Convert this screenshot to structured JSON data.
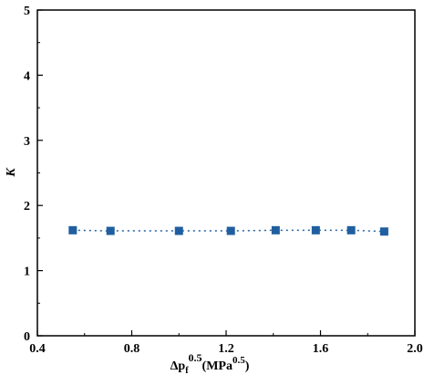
{
  "chart_data": {
    "type": "scatter",
    "xlabel": "Δp_f^0.5(MPa^0.5)",
    "xlabel_parts": {
      "base": "Δp",
      "sub": "f",
      "sup": "0.5",
      "unit_open": "(MPa",
      "unit_sup": "0.5",
      "unit_close": ")"
    },
    "ylabel": "K",
    "xlim": [
      0.4,
      2.0
    ],
    "ylim": [
      0,
      5
    ],
    "xticks": [
      "0.4",
      "0.8",
      "1.2",
      "1.6",
      "2.0"
    ],
    "yticks": [
      "0",
      "1",
      "2",
      "3",
      "4",
      "5"
    ],
    "grid": false,
    "series": [
      {
        "color": "#1f5fa0",
        "marker": "square",
        "line": "dotted",
        "x": [
          0.55,
          0.71,
          1.0,
          1.22,
          1.41,
          1.58,
          1.73,
          1.87
        ],
        "y": [
          1.62,
          1.61,
          1.61,
          1.61,
          1.62,
          1.62,
          1.62,
          1.6
        ]
      }
    ]
  }
}
